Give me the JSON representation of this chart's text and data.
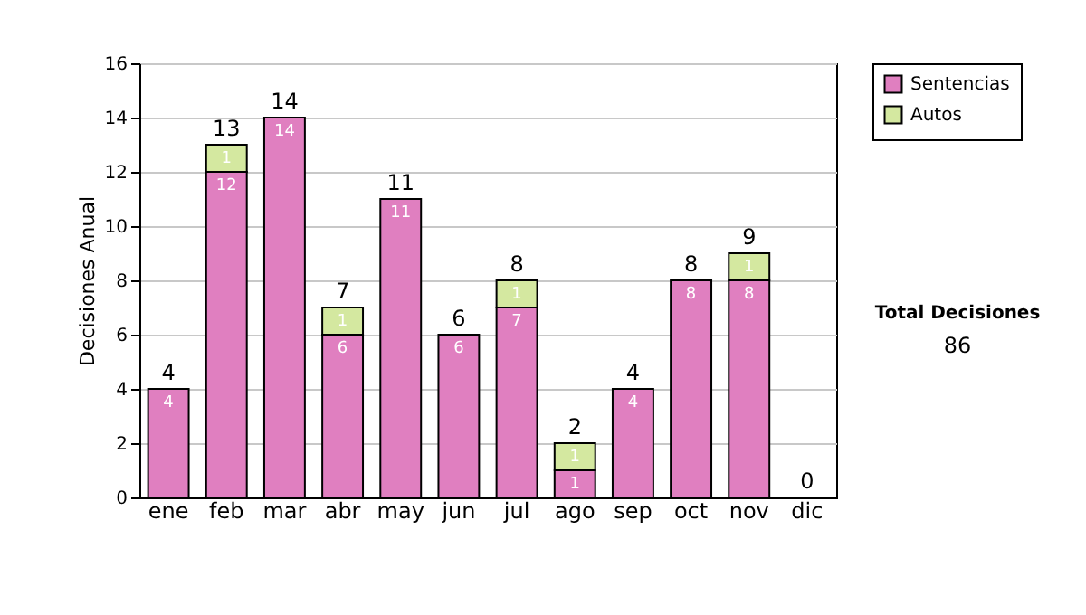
{
  "chart_data": {
    "type": "bar",
    "stacked": true,
    "ylabel": "Decisiones Anual",
    "categories": [
      "ene",
      "feb",
      "mar",
      "abr",
      "may",
      "jun",
      "jul",
      "ago",
      "sep",
      "oct",
      "nov",
      "dic"
    ],
    "series": [
      {
        "name": "Sentencias",
        "color": "#e07fc0",
        "values": [
          4,
          12,
          14,
          6,
          11,
          6,
          7,
          1,
          4,
          8,
          8,
          0
        ],
        "value_labels": [
          "4",
          "12",
          "14",
          "6",
          "11",
          "6",
          "7",
          "1",
          "4",
          "8",
          "8",
          null
        ]
      },
      {
        "name": "Autos",
        "color": "#d4e8a0",
        "values": [
          0,
          1,
          0,
          1,
          0,
          0,
          1,
          1,
          0,
          0,
          1,
          0
        ],
        "value_labels": [
          null,
          "1",
          null,
          "1",
          null,
          null,
          "1",
          "1",
          null,
          null,
          "1",
          null
        ]
      }
    ],
    "totals": [
      "4",
      "13",
      "14",
      "7",
      "11",
      "6",
      "8",
      "2",
      "4",
      "8",
      "9",
      "0"
    ],
    "ylim": [
      0,
      16
    ],
    "yticks": [
      0,
      2,
      4,
      6,
      8,
      10,
      12,
      14,
      16
    ],
    "grid": "y",
    "legend": "right",
    "annotations": [
      "Total Decisiones",
      "86"
    ]
  }
}
